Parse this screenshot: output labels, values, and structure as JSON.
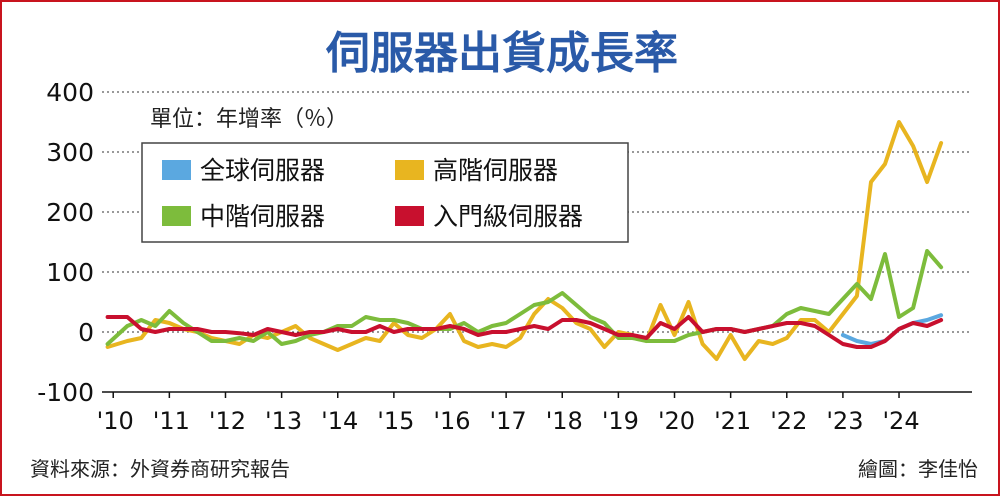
{
  "chart_data": {
    "type": "line",
    "title": "伺服器出貨成長率",
    "unit_label": "單位：年增率（％）",
    "x_tick_labels": [
      "'10",
      "'11",
      "'12",
      "'13",
      "'14",
      "'15",
      "'16",
      "'17",
      "'18",
      "'19",
      "'20",
      "'21",
      "'22",
      "'23",
      "'24"
    ],
    "y_tick_labels": [
      "400",
      "300",
      "200",
      "100",
      "0",
      "-100"
    ],
    "y_ticks": [
      400,
      300,
      200,
      100,
      0,
      -100
    ],
    "ylim": [
      -100,
      400
    ],
    "xlim": [
      2009.8,
      2025.3
    ],
    "grid": true,
    "legend_position": "top-left",
    "source": "資料來源：外資券商研究報告",
    "credit": "繪圖：李佳怡",
    "series": [
      {
        "name": "全球伺服器",
        "color": "#5ba8e0",
        "x": [
          2023.0,
          2023.25,
          2023.5,
          2023.75,
          2024.0,
          2024.25,
          2024.5,
          2024.75
        ],
        "y": [
          -5,
          -15,
          -20,
          -15,
          5,
          15,
          20,
          28
        ]
      },
      {
        "name": "高階伺服器",
        "color": "#e8b520",
        "x": [
          2009.9,
          2010.25,
          2010.5,
          2010.75,
          2011.0,
          2011.25,
          2011.5,
          2011.75,
          2012.0,
          2012.25,
          2012.5,
          2012.75,
          2013.0,
          2013.25,
          2013.5,
          2013.75,
          2014.0,
          2014.25,
          2014.5,
          2014.75,
          2015.0,
          2015.25,
          2015.5,
          2015.75,
          2016.0,
          2016.25,
          2016.5,
          2016.75,
          2017.0,
          2017.25,
          2017.5,
          2017.75,
          2018.0,
          2018.25,
          2018.5,
          2018.75,
          2019.0,
          2019.25,
          2019.5,
          2019.75,
          2020.0,
          2020.25,
          2020.5,
          2020.75,
          2021.0,
          2021.25,
          2021.5,
          2021.75,
          2022.0,
          2022.25,
          2022.5,
          2022.75,
          2023.0,
          2023.25,
          2023.5,
          2023.75,
          2024.0,
          2024.25,
          2024.5,
          2024.75
        ],
        "y": [
          -25,
          -15,
          -10,
          20,
          15,
          5,
          0,
          -10,
          -15,
          -20,
          -5,
          -10,
          0,
          10,
          -10,
          -20,
          -30,
          -20,
          -10,
          -15,
          15,
          -5,
          -10,
          5,
          30,
          -15,
          -25,
          -20,
          -25,
          -10,
          30,
          55,
          40,
          15,
          5,
          -25,
          0,
          -5,
          -15,
          45,
          -5,
          50,
          -20,
          -45,
          -5,
          -45,
          -15,
          -20,
          -10,
          20,
          20,
          0,
          30,
          60,
          250,
          280,
          350,
          310,
          250,
          315
        ]
      },
      {
        "name": "中階伺服器",
        "color": "#7dbc3c",
        "x": [
          2009.9,
          2010.25,
          2010.5,
          2010.75,
          2011.0,
          2011.25,
          2011.5,
          2011.75,
          2012.0,
          2012.25,
          2012.5,
          2012.75,
          2013.0,
          2013.25,
          2013.5,
          2013.75,
          2014.0,
          2014.25,
          2014.5,
          2014.75,
          2015.0,
          2015.25,
          2015.5,
          2015.75,
          2016.0,
          2016.25,
          2016.5,
          2016.75,
          2017.0,
          2017.25,
          2017.5,
          2017.75,
          2018.0,
          2018.25,
          2018.5,
          2018.75,
          2019.0,
          2019.25,
          2019.5,
          2019.75,
          2020.0,
          2020.25,
          2020.5,
          2020.75,
          2021.0,
          2021.25,
          2021.5,
          2021.75,
          2022.0,
          2022.25,
          2022.5,
          2022.75,
          2023.0,
          2023.25,
          2023.5,
          2023.75,
          2024.0,
          2024.25,
          2024.5,
          2024.75
        ],
        "y": [
          -20,
          10,
          20,
          10,
          35,
          15,
          0,
          -15,
          -15,
          -10,
          -15,
          0,
          -20,
          -15,
          -5,
          0,
          10,
          10,
          25,
          20,
          20,
          15,
          5,
          5,
          5,
          15,
          0,
          10,
          15,
          30,
          45,
          50,
          65,
          45,
          25,
          15,
          -10,
          -10,
          -15,
          -15,
          -15,
          -5,
          0,
          5,
          5,
          0,
          5,
          10,
          30,
          40,
          35,
          30,
          55,
          80,
          55,
          130,
          25,
          40,
          135,
          108
        ]
      },
      {
        "name": "入門級伺服器",
        "color": "#c8102e",
        "x": [
          2009.9,
          2010.25,
          2010.5,
          2010.75,
          2011.0,
          2011.25,
          2011.5,
          2011.75,
          2012.0,
          2012.25,
          2012.5,
          2012.75,
          2013.0,
          2013.25,
          2013.5,
          2013.75,
          2014.0,
          2014.25,
          2014.5,
          2014.75,
          2015.0,
          2015.25,
          2015.5,
          2015.75,
          2016.0,
          2016.25,
          2016.5,
          2016.75,
          2017.0,
          2017.25,
          2017.5,
          2017.75,
          2018.0,
          2018.25,
          2018.5,
          2018.75,
          2019.0,
          2019.25,
          2019.5,
          2019.75,
          2020.0,
          2020.25,
          2020.5,
          2020.75,
          2021.0,
          2021.25,
          2021.5,
          2021.75,
          2022.0,
          2022.25,
          2022.5,
          2022.75,
          2023.0,
          2023.25,
          2023.5,
          2023.75,
          2024.0,
          2024.25,
          2024.5,
          2024.75
        ],
        "y": [
          25,
          25,
          5,
          0,
          5,
          5,
          5,
          0,
          0,
          -2,
          -5,
          5,
          0,
          -5,
          0,
          0,
          5,
          0,
          0,
          10,
          0,
          5,
          5,
          5,
          10,
          5,
          -5,
          0,
          0,
          5,
          10,
          5,
          20,
          20,
          15,
          5,
          -5,
          -5,
          -10,
          15,
          5,
          25,
          0,
          5,
          5,
          0,
          5,
          10,
          15,
          15,
          10,
          -5,
          -20,
          -25,
          -25,
          -15,
          5,
          15,
          10,
          20
        ]
      }
    ]
  }
}
